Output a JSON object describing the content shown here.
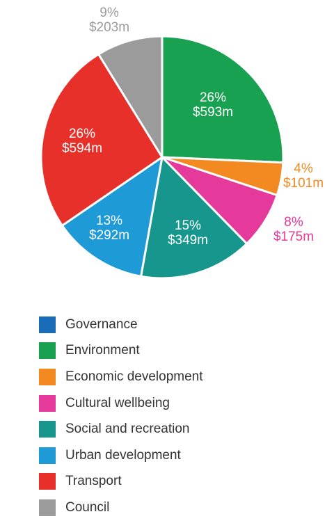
{
  "chart_data": {
    "type": "pie",
    "slices": [
      {
        "name": "Governance",
        "value": 0,
        "percent": "",
        "amount": "",
        "color": "#1a6bb8"
      },
      {
        "name": "Environment",
        "value": 593,
        "percent": "26%",
        "amount": "$593m",
        "color": "#17a150"
      },
      {
        "name": "Economic development",
        "value": 101,
        "percent": "4%",
        "amount": "$101m",
        "color": "#f28a21"
      },
      {
        "name": "Cultural wellbeing",
        "value": 175,
        "percent": "8%",
        "amount": "$175m",
        "color": "#e53a9b"
      },
      {
        "name": "Social and recreation",
        "value": 349,
        "percent": "15%",
        "amount": "$349m",
        "color": "#16968c"
      },
      {
        "name": "Urban development",
        "value": 292,
        "percent": "13%",
        "amount": "$292m",
        "color": "#1e9ad6"
      },
      {
        "name": "Transport",
        "value": 594,
        "percent": "26%",
        "amount": "$594m",
        "color": "#e8302a"
      },
      {
        "name": "Council",
        "value": 203,
        "percent": "9%",
        "amount": "$203m",
        "color": "#9b9b9b"
      }
    ],
    "legend_placement": "bottom-left"
  }
}
